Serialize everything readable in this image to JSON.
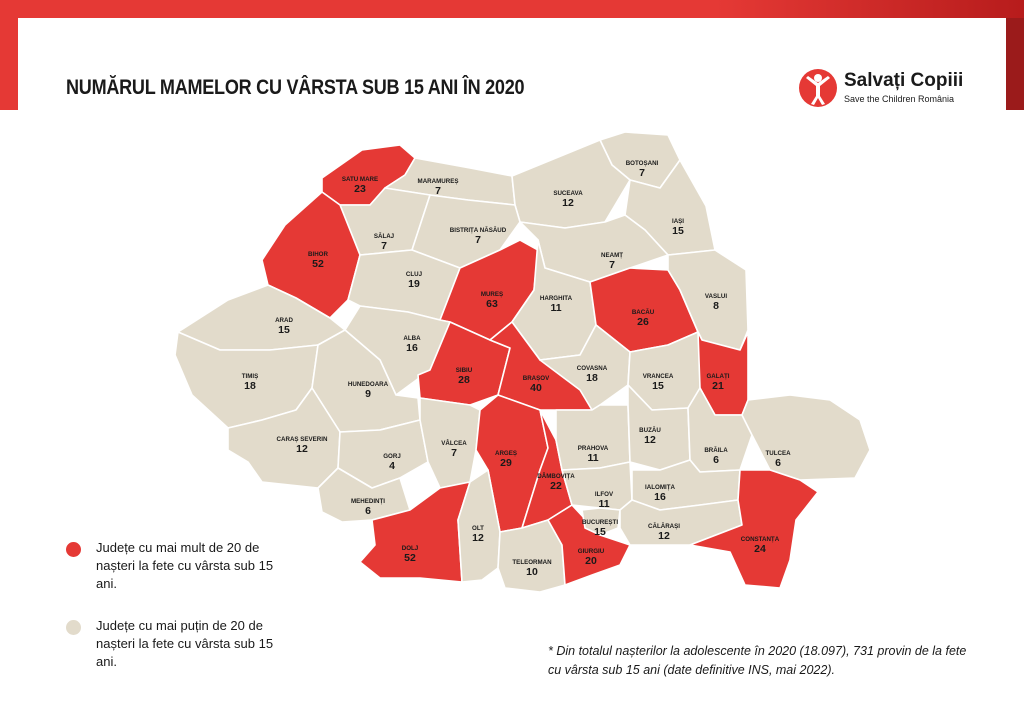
{
  "title": "NUMĂRUL MAMELOR CU VÂRSTA SUB 15 ANI ÎN 2020",
  "logo": {
    "name": "Salvați Copiii",
    "subtitle": "Save the Children România",
    "icon": "child-figure-icon"
  },
  "colors": {
    "red": "#e53935",
    "beige": "#e2dbcb",
    "border": "#ffffff",
    "accent_dark": "#9b1b1b"
  },
  "legend": [
    {
      "color": "#e53935",
      "text": "Județe cu mai mult de 20 de nașteri la fete cu vârsta sub 15 ani."
    },
    {
      "color": "#e2dbcb",
      "text": "Județe cu mai puțin de 20 de nașteri la fete cu vârsta sub 15 ani."
    }
  ],
  "footnote": "* Din totalul nașterilor la adolescente în 2020 (18.097), 731 provin de la fete cu vârsta sub 15 ani (date definitive INS, mai 2022).",
  "counties": [
    {
      "name": "SATU MARE",
      "value": "23",
      "category": "high"
    },
    {
      "name": "MARAMUREȘ",
      "value": "7",
      "category": "low"
    },
    {
      "name": "BOTOȘANI",
      "value": "7",
      "category": "low"
    },
    {
      "name": "SUCEAVA",
      "value": "12",
      "category": "low"
    },
    {
      "name": "IAȘI",
      "value": "15",
      "category": "low"
    },
    {
      "name": "SĂLAJ",
      "value": "7",
      "category": "low"
    },
    {
      "name": "BISTRIȚA NĂSĂUD",
      "value": "7",
      "category": "low"
    },
    {
      "name": "NEAMȚ",
      "value": "7",
      "category": "low"
    },
    {
      "name": "BIHOR",
      "value": "52",
      "category": "high"
    },
    {
      "name": "CLUJ",
      "value": "19",
      "category": "low"
    },
    {
      "name": "MUREȘ",
      "value": "63",
      "category": "high"
    },
    {
      "name": "HARGHITA",
      "value": "11",
      "category": "low"
    },
    {
      "name": "BACĂU",
      "value": "26",
      "category": "high"
    },
    {
      "name": "VASLUI",
      "value": "8",
      "category": "low"
    },
    {
      "name": "ARAD",
      "value": "15",
      "category": "low"
    },
    {
      "name": "ALBA",
      "value": "16",
      "category": "low"
    },
    {
      "name": "SIBIU",
      "value": "28",
      "category": "high"
    },
    {
      "name": "BRAȘOV",
      "value": "40",
      "category": "high"
    },
    {
      "name": "COVASNA",
      "value": "18",
      "category": "low"
    },
    {
      "name": "VRANCEA",
      "value": "15",
      "category": "low"
    },
    {
      "name": "GALAȚI",
      "value": "21",
      "category": "high"
    },
    {
      "name": "TIMIȘ",
      "value": "18",
      "category": "low"
    },
    {
      "name": "HUNEDOARA",
      "value": "9",
      "category": "low"
    },
    {
      "name": "CARAȘ SEVERIN",
      "value": "12",
      "category": "low"
    },
    {
      "name": "GORJ",
      "value": "4",
      "category": "low"
    },
    {
      "name": "VÂLCEA",
      "value": "7",
      "category": "low"
    },
    {
      "name": "ARGEȘ",
      "value": "29",
      "category": "high"
    },
    {
      "name": "DÂMBOVIȚA",
      "value": "22",
      "category": "high"
    },
    {
      "name": "PRAHOVA",
      "value": "11",
      "category": "low"
    },
    {
      "name": "BUZĂU",
      "value": "12",
      "category": "low"
    },
    {
      "name": "BRĂILA",
      "value": "6",
      "category": "low"
    },
    {
      "name": "TULCEA",
      "value": "6",
      "category": "low"
    },
    {
      "name": "MEHEDINȚI",
      "value": "6",
      "category": "low"
    },
    {
      "name": "DOLJ",
      "value": "52",
      "category": "high"
    },
    {
      "name": "OLT",
      "value": "12",
      "category": "low"
    },
    {
      "name": "TELEORMAN",
      "value": "10",
      "category": "low"
    },
    {
      "name": "GIURGIU",
      "value": "20",
      "category": "high"
    },
    {
      "name": "ILFOV",
      "value": "11",
      "category": "low"
    },
    {
      "name": "BUCUREȘTI",
      "value": "15",
      "category": "low"
    },
    {
      "name": "IALOMIȚA",
      "value": "16",
      "category": "low"
    },
    {
      "name": "CĂLĂRAȘI",
      "value": "12",
      "category": "low"
    },
    {
      "name": "CONSTANȚA",
      "value": "24",
      "category": "high"
    }
  ]
}
